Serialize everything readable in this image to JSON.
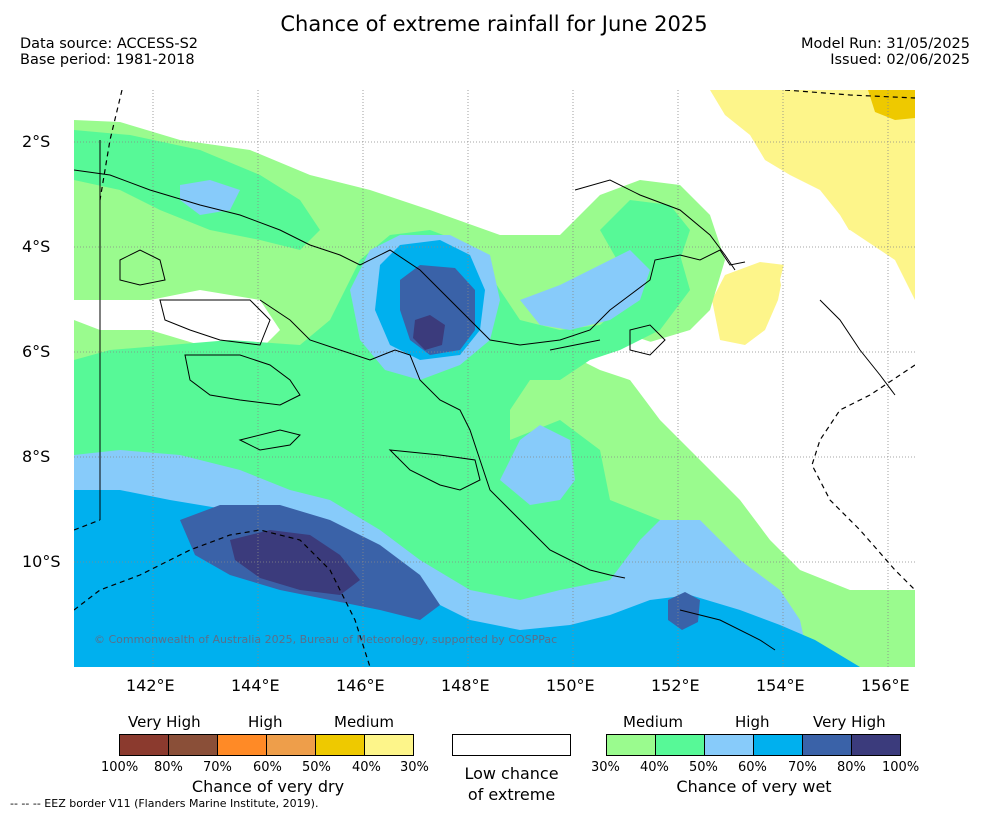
{
  "title": "Chance of extreme rainfall for June 2025",
  "meta": {
    "data_source": "Data source: ACCESS-S2",
    "base_period": "Base period: 1981-2018",
    "model_run": "Model Run: 31/05/2025",
    "issued": "Issued: 02/06/2025"
  },
  "map": {
    "lat_labels": [
      "2°S",
      "4°S",
      "6°S",
      "8°S",
      "10°S"
    ],
    "lon_labels": [
      "142°E",
      "144°E",
      "146°E",
      "148°E",
      "150°E",
      "152°E",
      "154°E",
      "156°E"
    ],
    "copyright": "© Commonwealth of Australia 2025, Bureau of Meteorology, supported by COSPPac",
    "footnote": "--  --  -- EEZ border V11 (Flanders Marine Institute, 2019)."
  },
  "legend": {
    "dry": {
      "heads": [
        "Very High",
        "High",
        "Medium"
      ],
      "colors": [
        "#8b3a2e",
        "#8a4f38",
        "#ff8a26",
        "#ee9e4a",
        "#eec900",
        "#fdf58a"
      ],
      "ticks": [
        "100%",
        "80%",
        "70%",
        "60%",
        "50%",
        "40%",
        "30%"
      ],
      "caption": "Chance of very dry"
    },
    "low": {
      "color": "#ffffff",
      "caption_line1": "Low chance",
      "caption_line2": "of extreme"
    },
    "wet": {
      "heads": [
        "Medium",
        "High",
        "Very High"
      ],
      "colors": [
        "#9afb8e",
        "#57f997",
        "#87cbfa",
        "#00b0ee",
        "#3a62a8",
        "#3b3b7c"
      ],
      "ticks": [
        "30%",
        "40%",
        "50%",
        "60%",
        "70%",
        "80%",
        "100%"
      ],
      "caption": "Chance of very wet"
    }
  }
}
